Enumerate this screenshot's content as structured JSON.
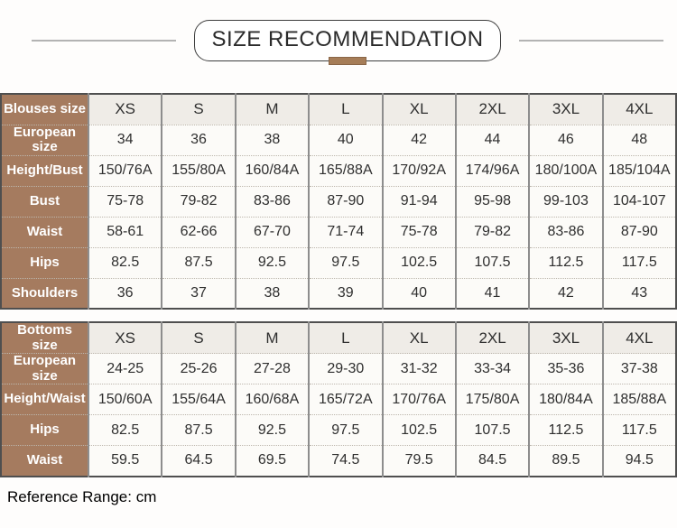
{
  "title": "SIZE RECOMMENDATION",
  "footer_note": "Reference Range: cm",
  "colors": {
    "label_column_brown": "#a57b5f",
    "title_accent_brown": "#a67d58",
    "size_header_row_bg": "#efece7",
    "data_cell_bg": "#fcfbf8",
    "outer_border": "#4f4f4f"
  },
  "tables": [
    {
      "name": "blouses",
      "rows": [
        {
          "label": "Blouses size",
          "header": true,
          "values": [
            "XS",
            "S",
            "M",
            "L",
            "XL",
            "2XL",
            "3XL",
            "4XL"
          ]
        },
        {
          "label": "European size",
          "header": false,
          "values": [
            "34",
            "36",
            "38",
            "40",
            "42",
            "44",
            "46",
            "48"
          ]
        },
        {
          "label": "Height/Bust",
          "header": false,
          "values": [
            "150/76A",
            "155/80A",
            "160/84A",
            "165/88A",
            "170/92A",
            "174/96A",
            "180/100A",
            "185/104A"
          ]
        },
        {
          "label": "Bust",
          "header": false,
          "values": [
            "75-78",
            "79-82",
            "83-86",
            "87-90",
            "91-94",
            "95-98",
            "99-103",
            "104-107"
          ]
        },
        {
          "label": "Waist",
          "header": false,
          "values": [
            "58-61",
            "62-66",
            "67-70",
            "71-74",
            "75-78",
            "79-82",
            "83-86",
            "87-90"
          ]
        },
        {
          "label": "Hips",
          "header": false,
          "values": [
            "82.5",
            "87.5",
            "92.5",
            "97.5",
            "102.5",
            "107.5",
            "112.5",
            "117.5"
          ]
        },
        {
          "label": "Shoulders",
          "header": false,
          "values": [
            "36",
            "37",
            "38",
            "39",
            "40",
            "41",
            "42",
            "43"
          ]
        }
      ]
    },
    {
      "name": "bottoms",
      "rows": [
        {
          "label": "Bottoms size",
          "header": true,
          "values": [
            "XS",
            "S",
            "M",
            "L",
            "XL",
            "2XL",
            "3XL",
            "4XL"
          ]
        },
        {
          "label": "European size",
          "header": false,
          "values": [
            "24-25",
            "25-26",
            "27-28",
            "29-30",
            "31-32",
            "33-34",
            "35-36",
            "37-38"
          ]
        },
        {
          "label": "Height/Waist",
          "header": false,
          "values": [
            "150/60A",
            "155/64A",
            "160/68A",
            "165/72A",
            "170/76A",
            "175/80A",
            "180/84A",
            "185/88A"
          ]
        },
        {
          "label": "Hips",
          "header": false,
          "values": [
            "82.5",
            "87.5",
            "92.5",
            "97.5",
            "102.5",
            "107.5",
            "112.5",
            "117.5"
          ]
        },
        {
          "label": "Waist",
          "header": false,
          "values": [
            "59.5",
            "64.5",
            "69.5",
            "74.5",
            "79.5",
            "84.5",
            "89.5",
            "94.5"
          ]
        }
      ]
    }
  ]
}
